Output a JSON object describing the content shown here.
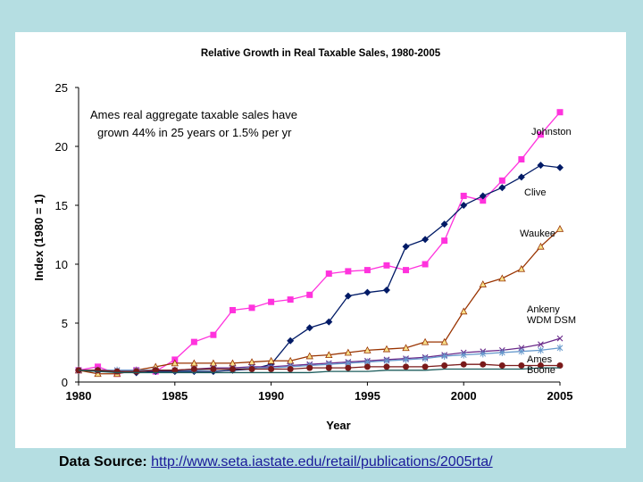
{
  "footer": {
    "source_label": "Data Source:",
    "source_url": "http://www.seta.iastate.edu/retail/publications/2005rta/"
  },
  "chart_data": {
    "type": "line",
    "title": "Relative Growth in Real Taxable Sales, 1980-2005",
    "xlabel": "Year",
    "ylabel": "Index (1980 = 1)",
    "xlim": [
      1980,
      2005
    ],
    "ylim": [
      0,
      25
    ],
    "x_ticks": [
      1980,
      1985,
      1990,
      1995,
      2000,
      2005
    ],
    "y_ticks": [
      0,
      5,
      10,
      15,
      20,
      25
    ],
    "grid": false,
    "annotation": [
      "Ames real aggregate taxable sales have",
      "grown 44% in 25 years or 1.5% per yr"
    ],
    "x": [
      1980,
      1981,
      1982,
      1983,
      1984,
      1985,
      1986,
      1987,
      1988,
      1989,
      1990,
      1991,
      1992,
      1993,
      1994,
      1995,
      1996,
      1997,
      1998,
      1999,
      2000,
      2001,
      2002,
      2003,
      2004,
      2005
    ],
    "series": [
      {
        "name": "Johnston",
        "color": "#ff33dd",
        "marker": "square",
        "values": [
          1,
          1.3,
          0.7,
          1.0,
          0.9,
          1.9,
          3.4,
          4.0,
          6.1,
          6.3,
          6.8,
          7.0,
          7.4,
          9.2,
          9.4,
          9.5,
          9.9,
          9.5,
          10.0,
          12.0,
          15.8,
          15.4,
          17.1,
          18.9,
          21.0,
          22.9
        ]
      },
      {
        "name": "Clive",
        "color": "#001a66",
        "marker": "diamond",
        "values": [
          1,
          0.9,
          0.9,
          0.8,
          0.9,
          0.9,
          0.9,
          0.9,
          1.0,
          1.1,
          1.5,
          3.5,
          4.6,
          5.1,
          7.3,
          7.6,
          7.8,
          11.5,
          12.1,
          13.4,
          15.0,
          15.8,
          16.5,
          17.4,
          18.4,
          18.2
        ]
      },
      {
        "name": "Waukee",
        "color": "#993300",
        "marker": "triangle",
        "values": [
          1,
          0.7,
          0.7,
          1.0,
          1.3,
          1.6,
          1.6,
          1.6,
          1.6,
          1.7,
          1.8,
          1.8,
          2.2,
          2.3,
          2.5,
          2.7,
          2.8,
          2.9,
          3.4,
          3.4,
          6.0,
          8.3,
          8.8,
          9.6,
          11.5,
          13.0
        ]
      },
      {
        "name": "Ankeny",
        "color": "#6a2a8a",
        "marker": "x",
        "values": [
          1,
          1.0,
          1.0,
          1.0,
          1.0,
          1.0,
          1.1,
          1.2,
          1.2,
          1.3,
          1.3,
          1.4,
          1.5,
          1.6,
          1.7,
          1.8,
          1.9,
          2.0,
          2.1,
          2.3,
          2.5,
          2.6,
          2.7,
          2.9,
          3.2,
          3.7
        ]
      },
      {
        "name": "WDM DSM",
        "color": "#6699cc",
        "marker": "star",
        "values": [
          1,
          1.0,
          1.0,
          1.0,
          1.0,
          1.0,
          1.0,
          1.1,
          1.1,
          1.2,
          1.2,
          1.3,
          1.4,
          1.5,
          1.6,
          1.7,
          1.8,
          1.9,
          2.0,
          2.2,
          2.3,
          2.4,
          2.5,
          2.6,
          2.7,
          2.9
        ]
      },
      {
        "name": "Ames",
        "color": "#7a1a1a",
        "marker": "circle",
        "values": [
          1,
          1.0,
          0.9,
          0.9,
          1.0,
          1.0,
          1.1,
          1.1,
          1.1,
          1.1,
          1.1,
          1.1,
          1.2,
          1.2,
          1.2,
          1.3,
          1.3,
          1.3,
          1.3,
          1.4,
          1.5,
          1.5,
          1.4,
          1.4,
          1.4,
          1.4
        ]
      },
      {
        "name": "Boone",
        "color": "#1c5c5c",
        "marker": "none",
        "values": [
          1,
          0.9,
          0.8,
          0.8,
          0.8,
          0.8,
          0.8,
          0.8,
          0.8,
          0.8,
          0.8,
          0.8,
          0.8,
          0.9,
          0.9,
          0.9,
          1.0,
          1.0,
          1.0,
          1.1,
          1.1,
          1.1,
          1.1,
          1.1,
          1.2,
          1.2
        ]
      }
    ]
  }
}
